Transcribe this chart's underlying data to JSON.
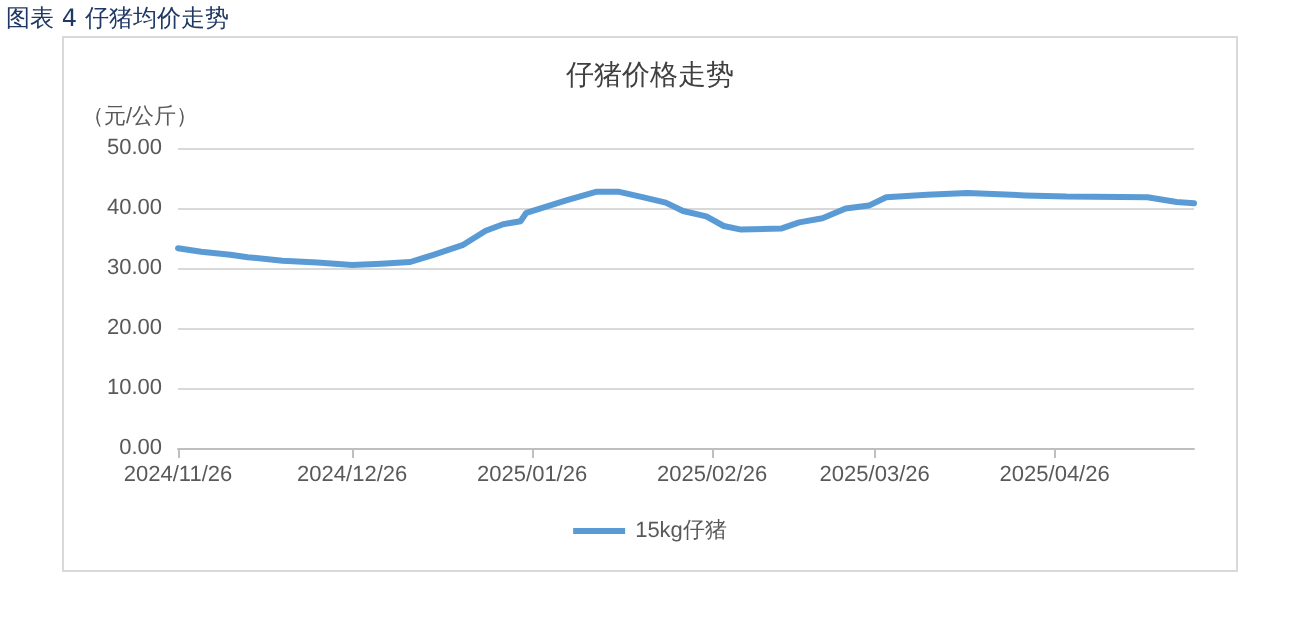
{
  "chart_data": {
    "type": "line",
    "title": "仔猪价格走势",
    "ylabel": "（元/公斤）",
    "annotations": [
      "图表 4 仔猪均价走势"
    ],
    "x": [
      "2024-11-26",
      "2024-11-30",
      "2024-12-05",
      "2024-12-08",
      "2024-12-14",
      "2024-12-20",
      "2024-12-26",
      "2024-12-31",
      "2025-01-05",
      "2025-01-09",
      "2025-01-14",
      "2025-01-18",
      "2025-01-21",
      "2025-01-24",
      "2025-01-25",
      "2025-02-01",
      "2025-02-06",
      "2025-02-10",
      "2025-02-14",
      "2025-02-18",
      "2025-02-21",
      "2025-02-25",
      "2025-02-28",
      "2025-03-03",
      "2025-03-10",
      "2025-03-13",
      "2025-03-17",
      "2025-03-21",
      "2025-03-25",
      "2025-03-28",
      "2025-04-04",
      "2025-04-11",
      "2025-04-21",
      "2025-04-28",
      "2025-05-12",
      "2025-05-17",
      "2025-05-20"
    ],
    "series": [
      {
        "name": "15kg仔猪",
        "color": "#5b9bd5",
        "values": [
          33.3,
          32.7,
          32.2,
          31.8,
          31.2,
          30.9,
          30.5,
          30.7,
          31.0,
          32.2,
          33.8,
          36.2,
          37.3,
          37.8,
          39.2,
          41.3,
          42.7,
          42.7,
          41.8,
          40.9,
          39.5,
          38.6,
          37.0,
          36.4,
          36.6,
          37.6,
          38.3,
          39.9,
          40.4,
          41.8,
          42.2,
          42.5,
          42.1,
          41.9,
          41.8,
          41.0,
          40.8
        ]
      }
    ],
    "xlim": [
      "2024-11-26",
      "2025-05-20"
    ],
    "xticks": [
      {
        "value": "2024-11-26",
        "label": "2024/11/26"
      },
      {
        "value": "2024-12-26",
        "label": "2024/12/26"
      },
      {
        "value": "2025-01-26",
        "label": "2025/01/26"
      },
      {
        "value": "2025-02-26",
        "label": "2025/02/26"
      },
      {
        "value": "2025-03-26",
        "label": "2025/03/26"
      },
      {
        "value": "2025-04-26",
        "label": "2025/04/26"
      }
    ],
    "ylim": [
      0,
      50
    ],
    "yticks": [
      {
        "value": 0,
        "label": "0.00"
      },
      {
        "value": 10,
        "label": "10.00"
      },
      {
        "value": 20,
        "label": "20.00"
      },
      {
        "value": 30,
        "label": "30.00"
      },
      {
        "value": 40,
        "label": "40.00"
      },
      {
        "value": 50,
        "label": "50.00"
      }
    ],
    "grid": "y",
    "legend": "bottom",
    "marker": "none",
    "line_style": "solid"
  }
}
